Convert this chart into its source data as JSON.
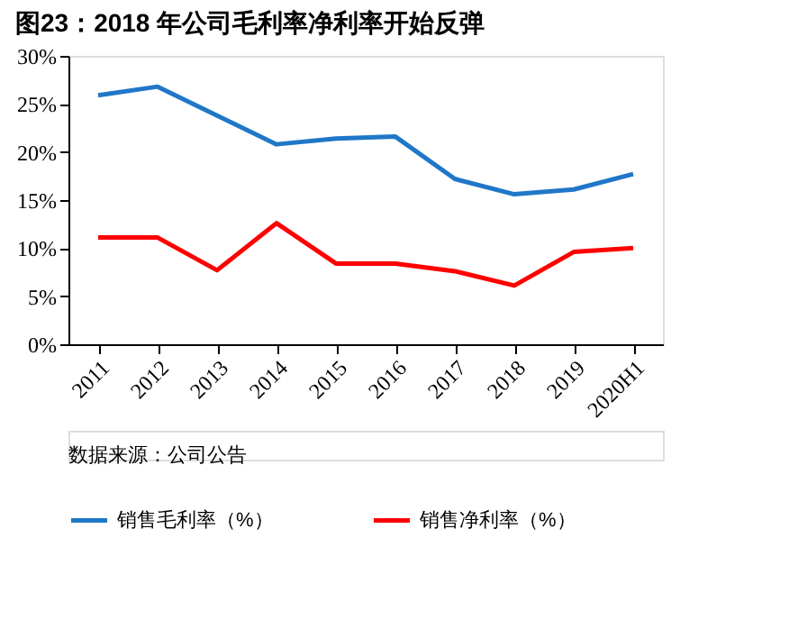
{
  "chart_data": {
    "type": "line",
    "title": "图23：2018 年公司毛利率净利率开始反弹",
    "categories": [
      "2011",
      "2012",
      "2013",
      "2014",
      "2015",
      "2016",
      "2017",
      "2018",
      "2019",
      "2020H1"
    ],
    "series": [
      {
        "name": "销售毛利率（%）",
        "color": "#1f77c8",
        "values": [
          25.9,
          26.8,
          23.8,
          20.8,
          21.4,
          21.6,
          17.2,
          15.6,
          16.1,
          17.7
        ]
      },
      {
        "name": "销售净利率（%）",
        "color": "#ff0000",
        "values": [
          11.1,
          11.1,
          7.7,
          12.6,
          8.4,
          8.4,
          7.6,
          6.1,
          9.6,
          10.0
        ]
      }
    ],
    "ylim": [
      0,
      30
    ],
    "yticks": [
      {
        "value": 0,
        "label": "0%"
      },
      {
        "value": 5,
        "label": "5%"
      },
      {
        "value": 10,
        "label": "10%"
      },
      {
        "value": 15,
        "label": "15%"
      },
      {
        "value": 20,
        "label": "20%"
      },
      {
        "value": 25,
        "label": "25%"
      },
      {
        "value": 30,
        "label": "30%"
      }
    ],
    "grid": false,
    "legend": "bottom",
    "marker": "none",
    "line_style": "solid",
    "annotations": [
      "数据来源：公司公告"
    ]
  }
}
